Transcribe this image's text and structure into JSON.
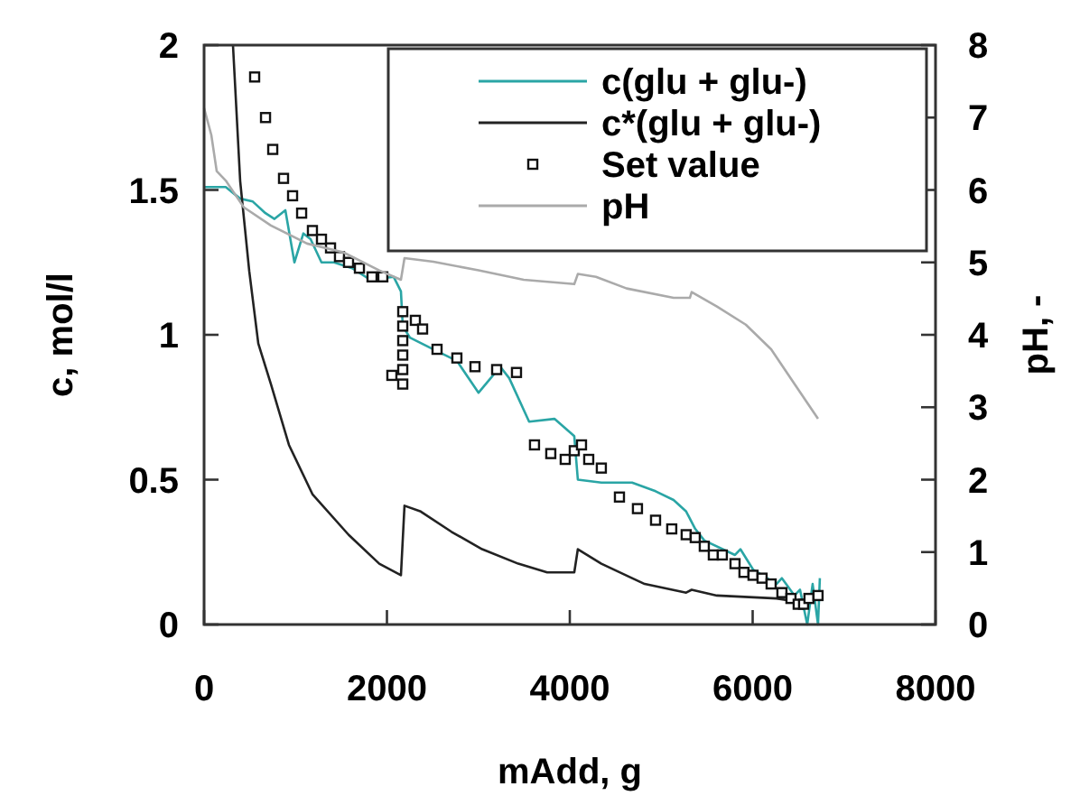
{
  "chart_data": {
    "type": "line",
    "xlabel": "mAdd, g",
    "ylabel": "c, mol/l",
    "y2label": "pH, -",
    "xlim": [
      0,
      8000
    ],
    "xticks": [
      0,
      2000,
      4000,
      6000,
      8000
    ],
    "ylim": [
      0,
      2
    ],
    "yticks": [
      0,
      0.5,
      1,
      1.5,
      2
    ],
    "y2lim": [
      0,
      8
    ],
    "y2ticks": [
      0,
      1,
      2,
      3,
      4,
      5,
      6,
      7,
      8
    ],
    "grid": false,
    "legend": "top right",
    "line_style": "solid",
    "series": [
      {
        "name": "c(glu + glu-)",
        "color": "#2aa5a5",
        "marker": "none",
        "x": [
          0,
          237,
          395,
          533,
          671,
          770,
          889,
          988,
          1086,
          1165,
          1284,
          1422,
          1620,
          1817,
          2074,
          2153,
          2173,
          2252,
          2508,
          2765,
          3002,
          3239,
          3338,
          3555,
          3832,
          4049,
          4088,
          4345,
          4681,
          4938,
          5135,
          5273,
          5372,
          5471,
          5807,
          5866,
          6004,
          6261,
          6320,
          6458,
          6518,
          6597,
          6656,
          6715,
          6735
        ],
        "values": [
          1.51,
          1.51,
          1.47,
          1.46,
          1.42,
          1.4,
          1.43,
          1.25,
          1.35,
          1.33,
          1.25,
          1.25,
          1.23,
          1.19,
          1.2,
          1.15,
          1.03,
          0.99,
          0.95,
          0.91,
          0.8,
          0.89,
          0.85,
          0.7,
          0.71,
          0.65,
          0.5,
          0.49,
          0.49,
          0.46,
          0.43,
          0.39,
          0.33,
          0.29,
          0.24,
          0.26,
          0.19,
          0.14,
          0.16,
          0.1,
          0.12,
          0,
          0.14,
          0,
          0.16
        ]
      },
      {
        "name": "c*(glu + glu-)",
        "color": "#222222",
        "marker": "none",
        "x": [
          316,
          395,
          494,
          593,
          731,
          928,
          1185,
          1580,
          1916,
          2153,
          2192,
          2370,
          2706,
          3041,
          3436,
          3753,
          4049,
          4088,
          4345,
          4681,
          4819,
          5273,
          5333,
          5609,
          6261,
          6458
        ],
        "values": [
          2.0,
          1.53,
          1.22,
          0.97,
          0.83,
          0.62,
          0.45,
          0.31,
          0.21,
          0.17,
          0.41,
          0.39,
          0.32,
          0.26,
          0.21,
          0.18,
          0.18,
          0.26,
          0.21,
          0.16,
          0.14,
          0.11,
          0.12,
          0.1,
          0.09,
          0.08
        ]
      },
      {
        "name": "Set value",
        "type": "scatter",
        "color": "#111111",
        "marker": "square",
        "x": [
          553,
          672,
          751,
          869,
          968,
          1067,
          1185,
          1284,
          1383,
          1481,
          1580,
          1699,
          1837,
          1955,
          2054,
          2173,
          2173,
          2173,
          2173,
          2173,
          2173,
          2311,
          2390,
          2548,
          2765,
          2963,
          3200,
          3417,
          3614,
          3792,
          3950,
          4049,
          4128,
          4207,
          4345,
          4543,
          4740,
          4938,
          5115,
          5273,
          5372,
          5471,
          5570,
          5668,
          5807,
          5905,
          6004,
          6103,
          6202,
          6320,
          6419,
          6498,
          6557,
          6616,
          6715
        ],
        "values": [
          1.89,
          1.75,
          1.64,
          1.54,
          1.48,
          1.42,
          1.36,
          1.33,
          1.3,
          1.27,
          1.25,
          1.23,
          1.2,
          1.2,
          0.86,
          1.08,
          1.03,
          0.98,
          0.93,
          0.88,
          0.83,
          1.05,
          1.02,
          0.95,
          0.92,
          0.89,
          0.88,
          0.87,
          0.62,
          0.59,
          0.57,
          0.6,
          0.62,
          0.57,
          0.54,
          0.44,
          0.4,
          0.36,
          0.33,
          0.31,
          0.3,
          0.27,
          0.24,
          0.24,
          0.21,
          0.18,
          0.17,
          0.16,
          0.14,
          0.11,
          0.09,
          0.07,
          0.07,
          0.09,
          0.1
        ]
      },
      {
        "name": "pH",
        "axis": "y2",
        "color": "#aaaaaa",
        "marker": "none",
        "x": [
          0,
          79,
          138,
          237,
          435,
          731,
          1126,
          1521,
          1916,
          2153,
          2192,
          2508,
          3002,
          3496,
          4049,
          4088,
          4286,
          4622,
          5135,
          5313,
          5333,
          5609,
          5925,
          6202,
          6458,
          6715
        ],
        "values": [
          7.13,
          6.76,
          6.26,
          6.13,
          5.76,
          5.51,
          5.26,
          5.14,
          4.89,
          4.76,
          5.06,
          5.01,
          4.89,
          4.76,
          4.7,
          4.84,
          4.8,
          4.64,
          4.51,
          4.51,
          4.59,
          4.39,
          4.14,
          3.8,
          3.32,
          2.84
        ]
      }
    ]
  }
}
